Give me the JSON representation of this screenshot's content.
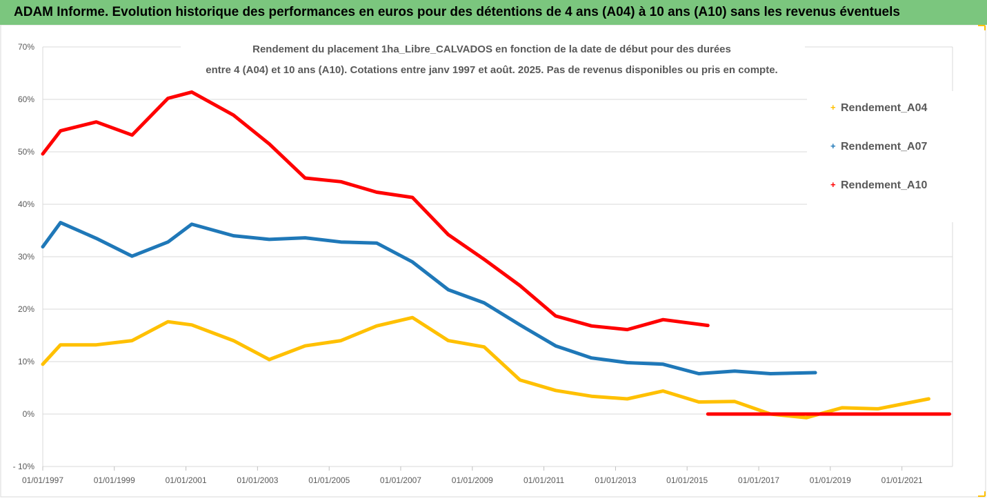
{
  "banner": {
    "text": "ADAM Informe. Evolution historique des performances en euros pour des détentions de 4 ans (A04) à 10 ans (A10) sans les revenus éventuels"
  },
  "chart_data": {
    "type": "line",
    "title_lines": [
      "Rendement du placement 1ha_Libre_CALVADOS en fonction de la date de début pour des durées",
      "entre 4 (A04) et 10 ans (A10). Cotations entre janv 1997 et août. 2025. Pas de revenus disponibles ou pris en compte."
    ],
    "xlabel": "",
    "ylabel": "",
    "x_range": [
      "1997-01-01",
      "2022-06-01"
    ],
    "ylim": [
      -10,
      70
    ],
    "y_ticks": [
      -10,
      0,
      10,
      20,
      30,
      40,
      50,
      60,
      70
    ],
    "y_tick_labels": [
      "- 10%",
      "0%",
      "10%",
      "20%",
      "30%",
      "40%",
      "50%",
      "60%",
      "70%"
    ],
    "x_ticks": [
      "1997-01-01",
      "1999-01-01",
      "2001-01-01",
      "2003-01-01",
      "2005-01-01",
      "2007-01-01",
      "2009-01-01",
      "2011-01-01",
      "2013-01-01",
      "2015-01-01",
      "2017-01-01",
      "2019-01-01",
      "2021-01-01"
    ],
    "x_tick_labels": [
      "01/01/1997",
      "01/01/1999",
      "01/01/2001",
      "01/01/2003",
      "01/01/2005",
      "01/01/2007",
      "01/01/2009",
      "01/01/2011",
      "01/01/2013",
      "01/01/2015",
      "01/01/2017",
      "01/01/2019",
      "01/01/2021"
    ],
    "grid": true,
    "legend_position": "top-right",
    "series": [
      {
        "name": "Rendement_A04",
        "color": "#ffc000",
        "points": [
          [
            "1997-01-01",
            9.5
          ],
          [
            "1997-07-01",
            13.2
          ],
          [
            "1998-07-01",
            13.2
          ],
          [
            "1999-07-01",
            14
          ],
          [
            "2000-07-01",
            17.6
          ],
          [
            "2001-03-01",
            17
          ],
          [
            "2002-05-01",
            14
          ],
          [
            "2003-05-01",
            10.4
          ],
          [
            "2004-05-01",
            13
          ],
          [
            "2005-05-01",
            14
          ],
          [
            "2006-05-01",
            16.8
          ],
          [
            "2007-05-01",
            18.4
          ],
          [
            "2008-05-01",
            14
          ],
          [
            "2009-05-01",
            12.8
          ],
          [
            "2010-05-01",
            6.5
          ],
          [
            "2011-05-01",
            4.5
          ],
          [
            "2012-05-01",
            3.4
          ],
          [
            "2013-05-01",
            2.9
          ],
          [
            "2014-05-01",
            4.4
          ],
          [
            "2015-05-01",
            2.3
          ],
          [
            "2016-05-01",
            2.4
          ],
          [
            "2017-05-01",
            0
          ],
          [
            "2018-05-01",
            -0.7
          ],
          [
            "2019-05-01",
            1.2
          ],
          [
            "2020-05-01",
            1
          ],
          [
            "2021-10-01",
            2.9
          ]
        ]
      },
      {
        "name": "Rendement_A07",
        "color": "#1f78b8",
        "points": [
          [
            "1997-01-01",
            31.9
          ],
          [
            "1997-07-01",
            36.5
          ],
          [
            "1998-07-01",
            33.5
          ],
          [
            "1999-07-01",
            30.1
          ],
          [
            "2000-07-01",
            32.8
          ],
          [
            "2001-03-01",
            36.2
          ],
          [
            "2002-05-01",
            34
          ],
          [
            "2003-05-01",
            33.3
          ],
          [
            "2004-05-01",
            33.6
          ],
          [
            "2005-05-01",
            32.8
          ],
          [
            "2006-05-01",
            32.6
          ],
          [
            "2007-05-01",
            29
          ],
          [
            "2008-05-01",
            23.7
          ],
          [
            "2009-05-01",
            21.2
          ],
          [
            "2010-05-01",
            17
          ],
          [
            "2011-05-01",
            13
          ],
          [
            "2012-05-01",
            10.7
          ],
          [
            "2013-05-01",
            9.8
          ],
          [
            "2014-05-01",
            9.5
          ],
          [
            "2015-05-01",
            7.7
          ],
          [
            "2016-05-01",
            8.2
          ],
          [
            "2017-05-01",
            7.7
          ],
          [
            "2018-08-01",
            7.9
          ]
        ]
      },
      {
        "name": "Rendement_A10",
        "color": "#ff0000",
        "points": [
          [
            "1997-01-01",
            49.6
          ],
          [
            "1997-07-01",
            54
          ],
          [
            "1998-07-01",
            55.7
          ],
          [
            "1999-07-01",
            53.2
          ],
          [
            "2000-07-01",
            60.2
          ],
          [
            "2001-03-01",
            61.4
          ],
          [
            "2002-05-01",
            57
          ],
          [
            "2003-05-01",
            51.5
          ],
          [
            "2004-05-01",
            45
          ],
          [
            "2005-05-01",
            44.3
          ],
          [
            "2006-05-01",
            42.3
          ],
          [
            "2007-05-01",
            41.3
          ],
          [
            "2008-05-01",
            34.2
          ],
          [
            "2009-05-01",
            29.5
          ],
          [
            "2010-05-01",
            24.5
          ],
          [
            "2011-05-01",
            18.7
          ],
          [
            "2012-05-01",
            16.8
          ],
          [
            "2013-05-01",
            16.1
          ],
          [
            "2014-05-01",
            18
          ],
          [
            "2015-08-01",
            16.9
          ]
        ]
      },
      {
        "name": "",
        "color": "#ff0000",
        "points": [
          [
            "2015-08-01",
            0
          ],
          [
            "2022-05-01",
            0
          ]
        ]
      }
    ]
  }
}
